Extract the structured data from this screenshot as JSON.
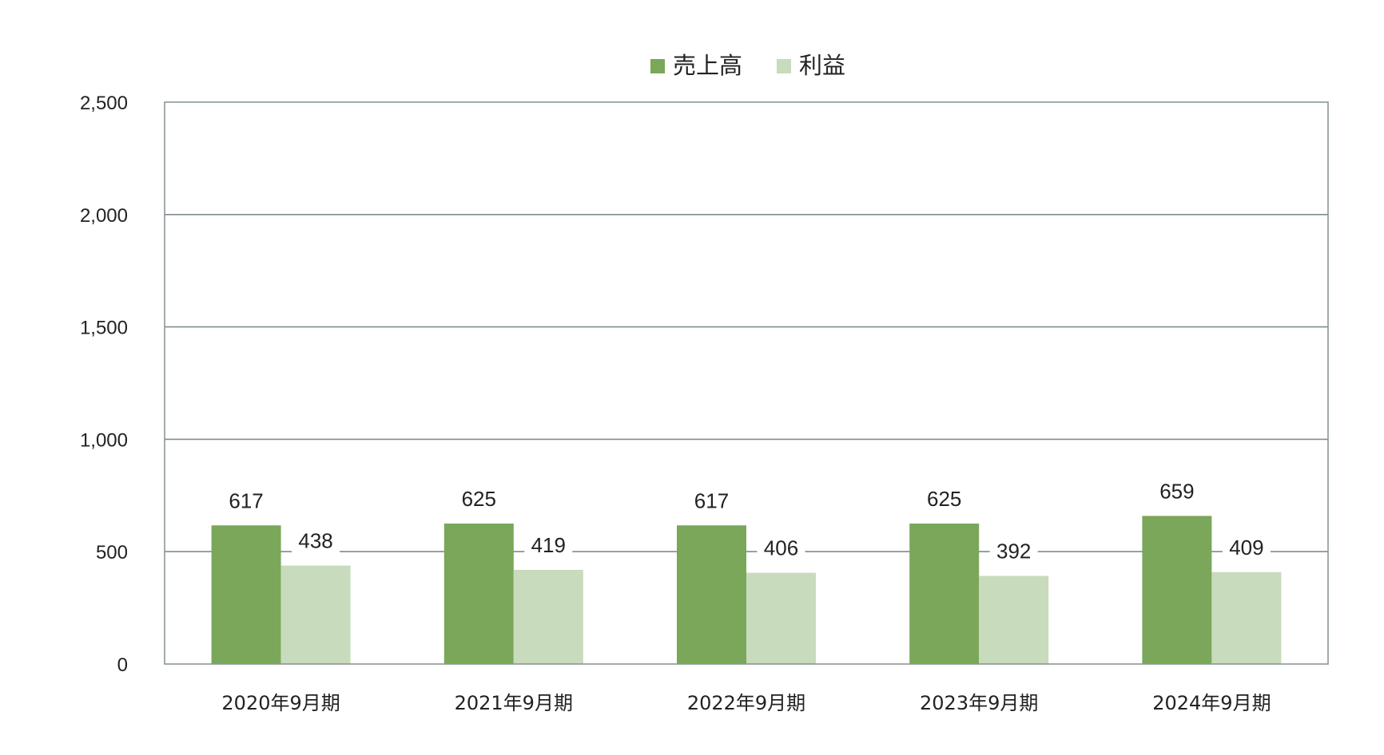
{
  "chart_data": {
    "type": "bar",
    "title": "",
    "xlabel": "",
    "ylabel": "",
    "categories": [
      "2020年9月期",
      "2021年9月期",
      "2022年9月期",
      "2023年9月期",
      "2024年9月期"
    ],
    "series": [
      {
        "name": "売上高",
        "color": "#7aa75a",
        "values": [
          617,
          625,
          617,
          625,
          659
        ]
      },
      {
        "name": "利益",
        "color": "#c8dbbc",
        "values": [
          438,
          419,
          406,
          392,
          409
        ]
      }
    ],
    "ylim": [
      0,
      2500
    ],
    "yticks": [
      0,
      500,
      1000,
      1500,
      2000,
      2500
    ],
    "ytick_labels": [
      "0",
      "500",
      "1,000",
      "1,500",
      "2,000",
      "2,500"
    ],
    "grid": true,
    "legend_position": "top-center",
    "gridline_color": "#7f8c8d",
    "axis_color": "#8a9699"
  }
}
